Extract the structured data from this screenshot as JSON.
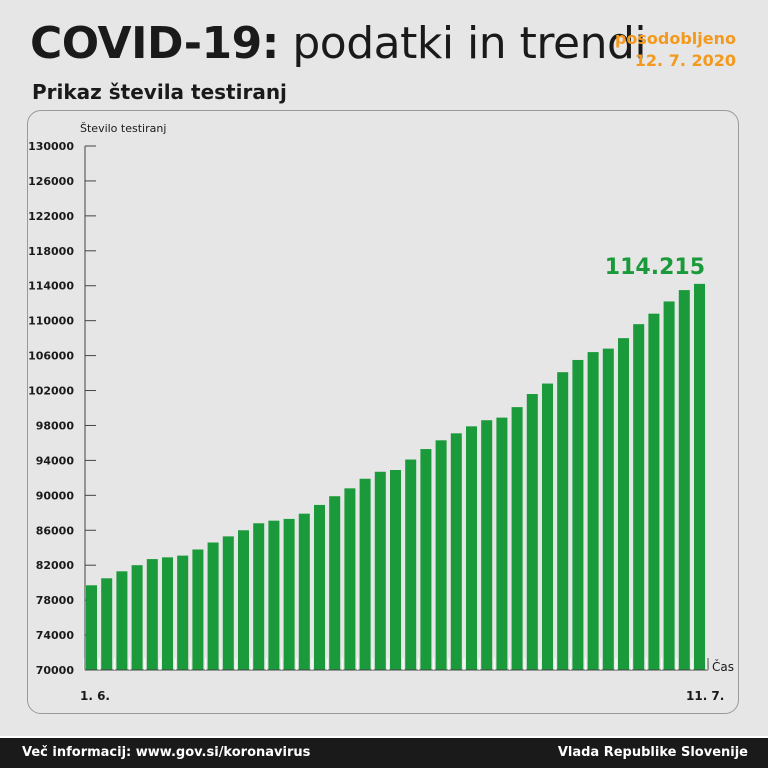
{
  "header": {
    "title_bold": "COVID-19:",
    "title_light": "podatki in trendi",
    "updated_label": "posodobljeno",
    "updated_date": "12. 7. 2020",
    "subtitle": "Prikaz števila testiranj"
  },
  "footer": {
    "info": "Več informacij: www.gov.si/koronavirus",
    "source": "Vlada Republike Slovenije"
  },
  "colors": {
    "bar": "#1a9a3a",
    "highlight": "#1a9a3a",
    "accent": "#f39a1e"
  },
  "chart_data": {
    "type": "bar",
    "title": "Prikaz števila testiranj",
    "ylabel": "Število testiranj",
    "xlabel": "Čas",
    "ylim": [
      70000,
      130000
    ],
    "yticks": [
      70000,
      74000,
      78000,
      82000,
      86000,
      90000,
      94000,
      98000,
      102000,
      106000,
      110000,
      114000,
      118000,
      122000,
      126000,
      130000
    ],
    "x_start_label": "1. 6.",
    "x_end_label": "11. 7.",
    "last_value_label": "114.215",
    "grid": false,
    "values": [
      79700,
      80500,
      81300,
      82000,
      82700,
      82900,
      83100,
      83800,
      84600,
      85300,
      86000,
      86800,
      87100,
      87300,
      87900,
      88900,
      89900,
      90800,
      91900,
      92700,
      92900,
      94100,
      95300,
      96300,
      97100,
      97900,
      98600,
      98900,
      100100,
      101600,
      102800,
      104100,
      105500,
      106400,
      106800,
      108000,
      109600,
      110800,
      112200,
      113500,
      114215
    ]
  }
}
